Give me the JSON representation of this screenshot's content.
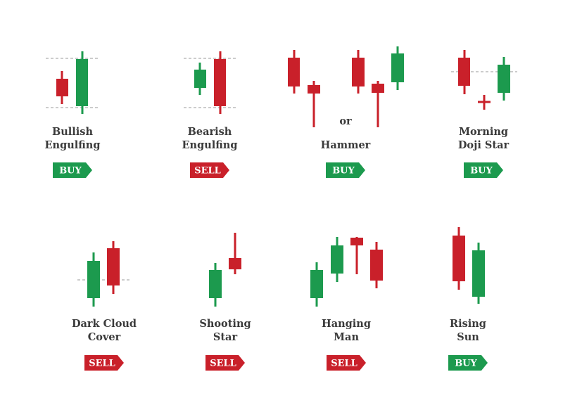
{
  "patterns": [
    {
      "name_lines": [
        "Bullish",
        "Engulfing"
      ],
      "signal": "BUY"
    },
    {
      "name_lines": [
        "Bearish",
        "Engulfing"
      ],
      "signal": "SELL"
    },
    {
      "name_lines": [
        "Hammer"
      ],
      "signal": "BUY"
    },
    {
      "name_lines": [
        "Morning",
        "Doji Star"
      ],
      "signal": "BUY"
    },
    {
      "name_lines": [
        "Dark Cloud",
        "Cover"
      ],
      "signal": "SELL"
    },
    {
      "name_lines": [
        "Shooting",
        "Star"
      ],
      "signal": "SELL"
    },
    {
      "name_lines": [
        "Hanging",
        "Man"
      ],
      "signal": "SELL"
    },
    {
      "name_lines": [
        "Rising",
        "Sun"
      ],
      "signal": "BUY"
    }
  ],
  "connector": "or"
}
